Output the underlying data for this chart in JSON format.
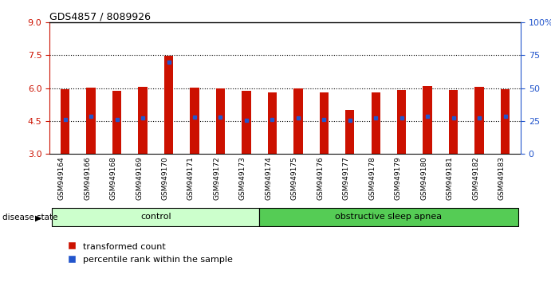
{
  "title": "GDS4857 / 8089926",
  "samples": [
    "GSM949164",
    "GSM949166",
    "GSM949168",
    "GSM949169",
    "GSM949170",
    "GSM949171",
    "GSM949172",
    "GSM949173",
    "GSM949174",
    "GSM949175",
    "GSM949176",
    "GSM949177",
    "GSM949178",
    "GSM949179",
    "GSM949180",
    "GSM949181",
    "GSM949182",
    "GSM949183"
  ],
  "bar_tops": [
    5.95,
    6.02,
    5.88,
    6.07,
    7.47,
    6.04,
    5.98,
    5.88,
    5.82,
    5.98,
    5.82,
    5.0,
    5.82,
    5.92,
    6.08,
    5.92,
    6.05,
    5.96
  ],
  "blue_markers": [
    4.55,
    4.72,
    4.55,
    4.65,
    7.18,
    4.68,
    4.68,
    4.52,
    4.55,
    4.62,
    4.55,
    4.52,
    4.63,
    4.65,
    4.72,
    4.62,
    4.65,
    4.72
  ],
  "bar_bottom": 3.0,
  "ylim_left": [
    3,
    9
  ],
  "ylim_right": [
    0,
    100
  ],
  "yticks_left": [
    3,
    4.5,
    6,
    7.5,
    9
  ],
  "yticks_right": [
    0,
    25,
    50,
    75,
    100
  ],
  "dotted_lines": [
    4.5,
    6.0,
    7.5
  ],
  "n_control": 8,
  "bar_color": "#cc1100",
  "blue_color": "#2255cc",
  "control_color": "#ccffcc",
  "apnea_color": "#55cc55",
  "group_labels": [
    "control",
    "obstructive sleep apnea"
  ],
  "legend_labels": [
    "transformed count",
    "percentile rank within the sample"
  ],
  "disease_state_label": "disease state",
  "tick_color_left": "#cc1100",
  "tick_color_right": "#2255cc",
  "bar_width": 0.35
}
